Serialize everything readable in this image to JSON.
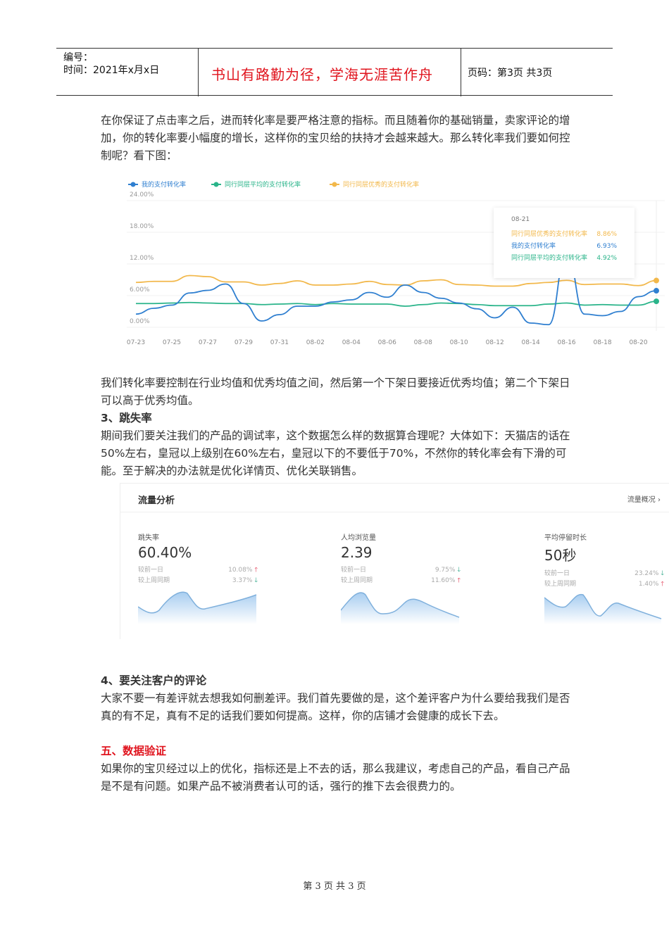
{
  "header": {
    "number_label": "编号：",
    "date_label": "时间：2021年x月x日",
    "motto": "书山有路勤为径，学海无涯苦作舟",
    "page_label": "页码：第3页  共3页"
  },
  "paragraphs": {
    "p1": "在你保证了点击率之后，进而转化率是要严格注意的指标。而且随着你的基础销量，卖家评论的增加，你的转化率要小幅度的增长，这样你的宝贝给的扶持才会越来越大。那么转化率我们要如何控制呢？看下图：",
    "p2": "我们转化率要控制在行业均值和优秀均值之间，然后第一个下架日要接近优秀均值；第二个下架日可以高于优秀均值。",
    "h3": "3、跳失率",
    "p3": "期间我们要关注我们的产品的调试率，这个数据怎么样的数据算合理呢？大体如下：天猫店的话在50%左右，皇冠以上级别在60%左右，皇冠以下的不要低于70%，不然你的转化率会有下滑的可能。至于解决的办法就是优化详情页、优化关联销售。",
    "h4": "4、要关注客户的评论",
    "p4": "大家不要一有差评就去想我如何删差评。我们首先要做的是，这个差评客户为什么要给我我们是否真的有不足，真有不足的话我们要如何提高。这样，你的店铺才会健康的成长下去。",
    "h5": "五、数据验证",
    "p5": "如果你的宝贝经过以上的优化，指标还是上不去的话，那么我建议，考虑自己的产品，看自己产品是不是有问题。如果产品不被消费者认可的话，强行的推下去会很费力的。"
  },
  "chart_data": {
    "type": "line",
    "ylim": [
      0,
      24
    ],
    "yticks": [
      "0.00%",
      "6.00%",
      "12.00%",
      "18.00%",
      "24.00%"
    ],
    "ytick_values": [
      0,
      6,
      12,
      18,
      24
    ],
    "legend_position": "top-left",
    "grid": true,
    "x": [
      "07-23",
      "07-24",
      "07-25",
      "07-26",
      "07-27",
      "07-28",
      "07-29",
      "07-30",
      "07-31",
      "08-01",
      "08-02",
      "08-03",
      "08-04",
      "08-05",
      "08-06",
      "08-07",
      "08-08",
      "08-09",
      "08-10",
      "08-11",
      "08-12",
      "08-13",
      "08-14",
      "08-15",
      "08-16",
      "08-17",
      "08-18",
      "08-19",
      "08-20",
      "08-21"
    ],
    "xtick_labels": [
      "07-23",
      "07-25",
      "07-27",
      "07-29",
      "07-31",
      "08-02",
      "08-04",
      "08-06",
      "08-08",
      "08-10",
      "08-12",
      "08-14",
      "08-16",
      "08-18",
      "08-20"
    ],
    "series": [
      {
        "name": "我的支付转化率",
        "color": "#2f7fd0",
        "values": [
          2.5,
          3.6,
          4.2,
          6.5,
          7.0,
          8.2,
          4.5,
          1.2,
          2.4,
          4.0,
          4.0,
          4.8,
          5.2,
          6.6,
          5.7,
          8.0,
          6.6,
          5.5,
          4.6,
          3.5,
          1.8,
          3.8,
          0.8,
          0.5,
          14.0,
          2.5,
          2.2,
          3.0,
          5.8,
          6.93
        ]
      },
      {
        "name": "同行同层平均的支付转化率",
        "color": "#2ab48a",
        "values": [
          4.5,
          4.5,
          4.6,
          4.7,
          4.6,
          4.5,
          4.5,
          4.3,
          4.4,
          4.5,
          4.3,
          4.5,
          4.4,
          4.4,
          4.4,
          4.0,
          4.3,
          4.6,
          4.5,
          4.3,
          4.1,
          4.1,
          4.1,
          4.4,
          4.6,
          4.2,
          4.3,
          4.2,
          4.2,
          4.92
        ]
      },
      {
        "name": "同行同层优秀的支付转化率",
        "color": "#f2b84b",
        "values": [
          8.5,
          8.7,
          8.7,
          9.8,
          9.6,
          8.6,
          8.6,
          8.0,
          8.3,
          8.8,
          8.0,
          8.0,
          8.2,
          8.7,
          8.1,
          8.0,
          8.8,
          9.0,
          8.1,
          8.0,
          7.8,
          7.8,
          8.3,
          8.5,
          8.9,
          8.1,
          8.2,
          8.2,
          7.9,
          8.86
        ]
      }
    ],
    "tooltip": {
      "date": "08-21",
      "rows": [
        {
          "name": "同行同层优秀的支付转化率",
          "value": "8.86%",
          "color": "#f2b84b"
        },
        {
          "name": "我的支付转化率",
          "value": "6.93%",
          "color": "#2f7fd0"
        },
        {
          "name": "同行同层平均的支付转化率",
          "value": "4.92%",
          "color": "#2ab48a"
        }
      ]
    }
  },
  "traffic": {
    "title": "流量分析",
    "link": "流量概况 ›",
    "metrics": [
      {
        "label": "跳失率",
        "value": "60.40%",
        "r1": "较前一日",
        "v1": "10.08%",
        "a1": "up",
        "r2": "较上周同期",
        "v2": "3.37%",
        "a2": "down"
      },
      {
        "label": "人均浏览量",
        "value": "2.39",
        "r1": "较前一日",
        "v1": "9.75%",
        "a1": "down",
        "r2": "较上周同期",
        "v2": "11.60%",
        "a2": "up"
      },
      {
        "label": "平均停留时长",
        "value": "50秒",
        "r1": "较前一日",
        "v1": "23.24%",
        "a1": "down",
        "r2": "较上周同期",
        "v2": "1.40%",
        "a2": "up"
      }
    ]
  },
  "footer": "第 3 页 共 3 页"
}
